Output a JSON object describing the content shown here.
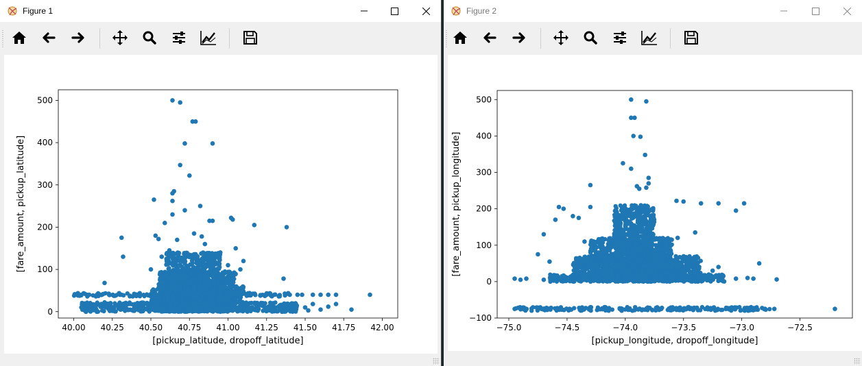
{
  "windows": [
    {
      "title": "Figure 1",
      "toolbar": [
        "home-icon",
        "back-icon",
        "forward-icon",
        "pan-icon",
        "zoom-icon",
        "configure-subplots-icon",
        "edit-axis-icon",
        "save-icon"
      ]
    },
    {
      "title": "Figure 2",
      "toolbar": [
        "home-icon",
        "back-icon",
        "forward-icon",
        "pan-icon",
        "zoom-icon",
        "configure-subplots-icon",
        "edit-axis-icon",
        "save-icon"
      ]
    }
  ],
  "colors": {
    "marker": "#1f77b4",
    "titlebar_active": "#ffffff",
    "toolbar": "#f0f0f0"
  },
  "chart_data": [
    {
      "type": "scatter",
      "xlabel": "[pickup_latitude, dropoff_latitude]",
      "ylabel": "[fare_amount, pickup_latitude]",
      "xlim": [
        39.9,
        42.1
      ],
      "ylim": [
        -15,
        525
      ],
      "xticks": [
        "40.00",
        "40.25",
        "40.50",
        "40.75",
        "41.00",
        "41.25",
        "41.50",
        "41.75",
        "42.00"
      ],
      "xtick_values": [
        40.0,
        40.25,
        40.5,
        40.75,
        41.0,
        41.25,
        41.5,
        41.75,
        42.0
      ],
      "yticks": [
        "0",
        "100",
        "200",
        "300",
        "400",
        "500"
      ],
      "ytick_values": [
        0,
        100,
        200,
        300,
        400,
        500
      ],
      "grid": false,
      "points": [
        [
          40.64,
          500
        ],
        [
          40.69,
          495
        ],
        [
          40.77,
          450
        ],
        [
          40.79,
          450
        ],
        [
          40.72,
          398
        ],
        [
          40.9,
          398
        ],
        [
          40.69,
          347
        ],
        [
          40.75,
          322
        ],
        [
          40.65,
          285
        ],
        [
          40.64,
          280
        ],
        [
          40.64,
          262
        ],
        [
          40.52,
          265
        ],
        [
          40.82,
          250
        ],
        [
          40.72,
          240
        ],
        [
          40.64,
          230
        ],
        [
          41.02,
          222
        ],
        [
          41.03,
          218
        ],
        [
          40.9,
          215
        ],
        [
          40.88,
          215
        ],
        [
          41.17,
          205
        ],
        [
          41.38,
          200
        ],
        [
          40.59,
          210
        ],
        [
          40.31,
          175
        ],
        [
          40.53,
          180
        ],
        [
          40.55,
          172
        ],
        [
          40.32,
          130
        ],
        [
          40.5,
          100
        ],
        [
          40.2,
          68
        ],
        [
          41.36,
          78
        ],
        [
          40.05,
          40
        ],
        [
          40.1,
          40
        ],
        [
          40.17,
          40
        ],
        [
          40.23,
          40
        ],
        [
          40.3,
          40
        ],
        [
          40.4,
          40
        ],
        [
          40.6,
          40
        ],
        [
          41.25,
          40
        ],
        [
          41.3,
          40
        ],
        [
          41.4,
          40
        ],
        [
          41.45,
          40
        ],
        [
          41.48,
          40
        ],
        [
          41.55,
          40
        ],
        [
          41.6,
          40
        ],
        [
          41.65,
          40
        ],
        [
          41.7,
          40
        ],
        [
          41.92,
          40
        ],
        [
          40.05,
          10
        ],
        [
          40.1,
          5
        ],
        [
          40.2,
          22
        ],
        [
          40.25,
          10
        ],
        [
          40.35,
          5
        ],
        [
          40.4,
          8
        ],
        [
          41.4,
          10
        ],
        [
          41.5,
          10
        ],
        [
          41.52,
          3
        ],
        [
          41.55,
          18
        ],
        [
          41.6,
          5
        ],
        [
          41.65,
          12
        ],
        [
          41.7,
          18
        ],
        [
          41.8,
          5
        ],
        [
          40.08,
          0
        ],
        [
          40.15,
          0
        ],
        [
          41.35,
          0
        ],
        [
          40.62,
          145
        ],
        [
          40.85,
          160
        ],
        [
          40.95,
          140
        ],
        [
          41.05,
          150
        ],
        [
          41.1,
          120
        ],
        [
          40.57,
          130
        ],
        [
          40.67,
          170
        ],
        [
          40.78,
          185
        ],
        [
          40.83,
          178
        ],
        [
          40.92,
          130
        ],
        [
          41.0,
          110
        ],
        [
          40.98,
          95
        ],
        [
          40.6,
          90
        ],
        [
          41.08,
          100
        ]
      ],
      "bands": [
        {
          "x": [
            40.0,
            41.4
          ],
          "y": [
            36,
            44
          ]
        },
        {
          "x": [
            40.05,
            41.45
          ],
          "y": [
            0,
            22
          ]
        },
        {
          "x": [
            40.6,
            40.95
          ],
          "y": [
            0,
            140
          ]
        },
        {
          "x": [
            40.55,
            41.05
          ],
          "y": [
            0,
            95
          ]
        },
        {
          "x": [
            40.5,
            41.1
          ],
          "y": [
            0,
            60
          ]
        }
      ]
    },
    {
      "type": "scatter",
      "xlabel": "[pickup_longitude, dropoff_longitude]",
      "ylabel": "[fare_amount, pickup_longitude]",
      "xlim": [
        -75.1,
        -72.05
      ],
      "ylim": [
        -100,
        525
      ],
      "xticks": [
        "−75.0",
        "−74.5",
        "−74.0",
        "−73.5",
        "−73.0",
        "−72.5"
      ],
      "xtick_values": [
        -75.0,
        -74.5,
        -74.0,
        -73.5,
        -73.0,
        -72.5
      ],
      "yticks": [
        "−100",
        "0",
        "100",
        "200",
        "300",
        "400",
        "500"
      ],
      "ytick_values": [
        -100,
        0,
        100,
        200,
        300,
        400,
        500
      ],
      "grid": false,
      "points": [
        [
          -73.95,
          500
        ],
        [
          -73.82,
          495
        ],
        [
          -73.92,
          450
        ],
        [
          -73.95,
          450
        ],
        [
          -73.93,
          400
        ],
        [
          -73.87,
          398
        ],
        [
          -73.83,
          348
        ],
        [
          -74.02,
          325
        ],
        [
          -73.95,
          310
        ],
        [
          -73.8,
          285
        ],
        [
          -73.8,
          270
        ],
        [
          -73.82,
          258
        ],
        [
          -73.88,
          255
        ],
        [
          -74.3,
          265
        ],
        [
          -73.9,
          262
        ],
        [
          -73.56,
          222
        ],
        [
          -73.5,
          220
        ],
        [
          -73.35,
          215
        ],
        [
          -73.2,
          215
        ],
        [
          -72.98,
          215
        ],
        [
          -74.57,
          205
        ],
        [
          -74.53,
          200
        ],
        [
          -74.3,
          205
        ],
        [
          -73.05,
          195
        ],
        [
          -74.45,
          180
        ],
        [
          -74.6,
          170
        ],
        [
          -74.4,
          175
        ],
        [
          -74.7,
          130
        ],
        [
          -74.75,
          75
        ],
        [
          -74.65,
          55
        ],
        [
          -74.35,
          110
        ],
        [
          -73.55,
          120
        ],
        [
          -73.4,
          135
        ],
        [
          -74.95,
          8
        ],
        [
          -74.9,
          5
        ],
        [
          -74.85,
          8
        ],
        [
          -74.6,
          10
        ],
        [
          -74.7,
          5
        ],
        [
          -73.05,
          8
        ],
        [
          -72.95,
          10
        ],
        [
          -72.9,
          8
        ],
        [
          -72.7,
          6
        ],
        [
          -72.85,
          50
        ],
        [
          -73.2,
          40
        ],
        [
          -73.25,
          30
        ],
        [
          -74.95,
          -75
        ],
        [
          -74.85,
          -75
        ],
        [
          -72.95,
          -75
        ],
        [
          -72.88,
          -75
        ],
        [
          -72.72,
          -75
        ],
        [
          -72.2,
          -75
        ]
      ],
      "bands": [
        {
          "x": [
            -74.95,
            -72.75
          ],
          "y": [
            -80,
            -70
          ]
        },
        {
          "x": [
            -74.65,
            -73.15
          ],
          "y": [
            0,
            20
          ]
        },
        {
          "x": [
            -74.3,
            -73.6
          ],
          "y": [
            0,
            120
          ]
        },
        {
          "x": [
            -74.1,
            -73.75
          ],
          "y": [
            0,
            210
          ]
        },
        {
          "x": [
            -74.45,
            -73.35
          ],
          "y": [
            0,
            70
          ]
        }
      ]
    }
  ]
}
